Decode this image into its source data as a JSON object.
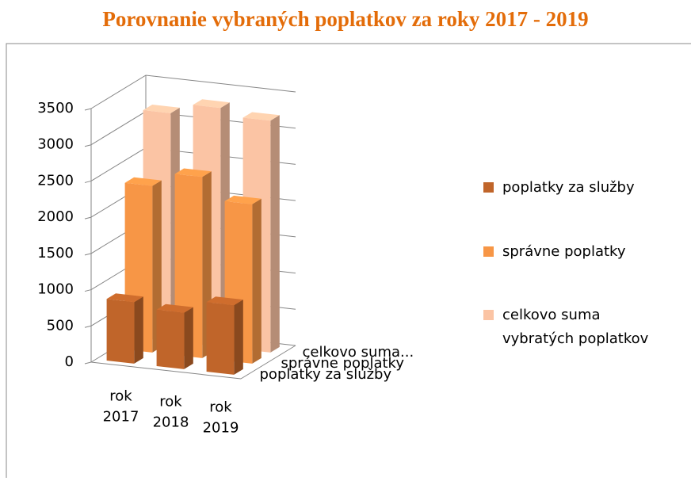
{
  "chart_data": {
    "type": "bar3d",
    "title": "Porovnanie vybraných poplatkov za roky 2017 - 2019",
    "categories": [
      "rok 2017",
      "rok 2018",
      "rok 2019"
    ],
    "series": [
      {
        "name": "poplatky za služby",
        "color": "#c0652a",
        "values": [
          850,
          780,
          960
        ]
      },
      {
        "name": "správne poplatky",
        "color": "#f79646",
        "values": [
          2300,
          2500,
          2200
        ]
      },
      {
        "name": "celkovo suma vybratých poplatkov",
        "color": "#fbc4a4",
        "values": [
          3150,
          3300,
          3200
        ]
      }
    ],
    "depth_labels": [
      "poplatky za služby",
      "správne poplatky",
      "celkovo suma..."
    ],
    "ylim": [
      0,
      3500
    ],
    "yticks": [
      0,
      500,
      1000,
      1500,
      2000,
      2500,
      3000,
      3500
    ],
    "grid": true,
    "legend": "right"
  }
}
